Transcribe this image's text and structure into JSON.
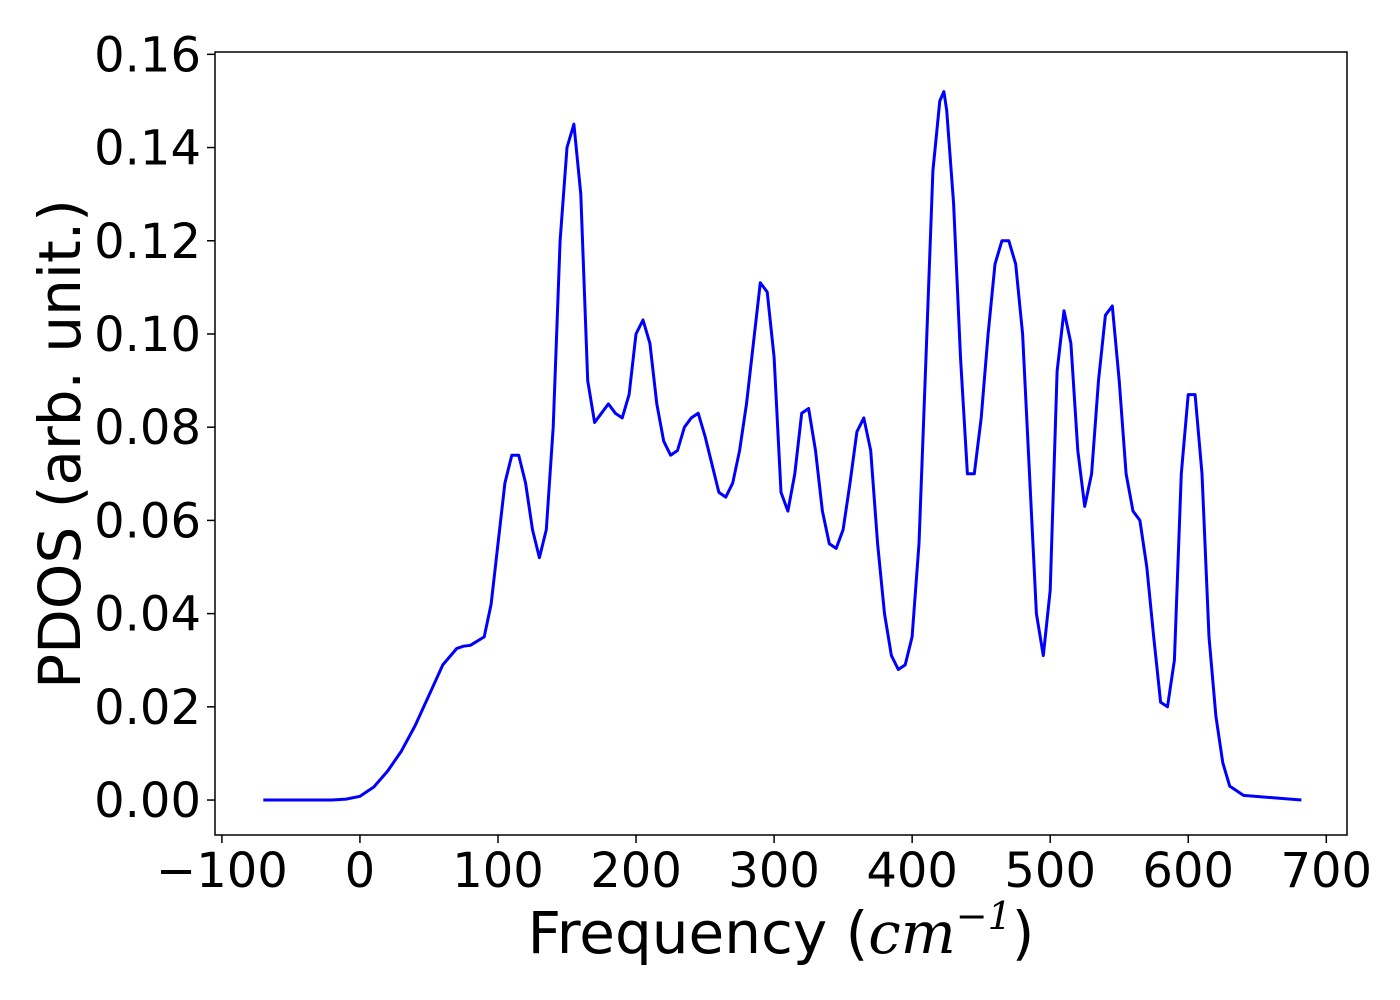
{
  "chart_data": {
    "type": "line",
    "title": "",
    "xlabel_prefix": "Frequency (",
    "xlabel_unit": "cm",
    "xlabel_exp": "−1",
    "xlabel_suffix": ")",
    "ylabel": "PDOS (arb. unit.)",
    "xlim": [
      -105,
      715
    ],
    "ylim": [
      -0.0075,
      0.1605
    ],
    "xticks": [
      -100,
      0,
      100,
      200,
      300,
      400,
      500,
      600,
      700
    ],
    "xtick_labels": [
      "−100",
      "0",
      "100",
      "200",
      "300",
      "400",
      "500",
      "600",
      "700"
    ],
    "yticks": [
      0.0,
      0.02,
      0.04,
      0.06,
      0.08,
      0.1,
      0.12,
      0.14,
      0.16
    ],
    "ytick_labels": [
      "0.00",
      "0.02",
      "0.04",
      "0.06",
      "0.08",
      "0.10",
      "0.12",
      "0.14",
      "0.16"
    ],
    "grid": false,
    "line_color": "#0000ff",
    "series": [
      {
        "x": [
          -70,
          -20,
          -10,
          0,
          10,
          20,
          30,
          40,
          50,
          60,
          70,
          75,
          80,
          90,
          95,
          100,
          105,
          110,
          115,
          120,
          125,
          130,
          135,
          140,
          145,
          150,
          155,
          160,
          165,
          170,
          175,
          180,
          185,
          190,
          195,
          200,
          205,
          210,
          215,
          220,
          225,
          230,
          235,
          240,
          245,
          250,
          255,
          260,
          265,
          270,
          275,
          280,
          285,
          290,
          295,
          300,
          305,
          310,
          315,
          320,
          325,
          330,
          335,
          340,
          345,
          350,
          355,
          360,
          365,
          370,
          375,
          380,
          385,
          390,
          395,
          400,
          405,
          410,
          415,
          420,
          423,
          425,
          430,
          435,
          440,
          445,
          450,
          455,
          460,
          465,
          470,
          475,
          480,
          485,
          490,
          495,
          500,
          505,
          510,
          515,
          520,
          525,
          530,
          535,
          540,
          545,
          550,
          555,
          560,
          565,
          570,
          575,
          580,
          585,
          590,
          595,
          600,
          605,
          610,
          615,
          620,
          625,
          630,
          640,
          682
        ],
        "y": [
          0.0,
          0.0,
          0.0002,
          0.0008,
          0.0028,
          0.0062,
          0.0105,
          0.016,
          0.0225,
          0.029,
          0.0325,
          0.033,
          0.0332,
          0.035,
          0.042,
          0.055,
          0.068,
          0.074,
          0.074,
          0.068,
          0.058,
          0.052,
          0.058,
          0.08,
          0.12,
          0.14,
          0.145,
          0.13,
          0.09,
          0.081,
          0.083,
          0.085,
          0.083,
          0.082,
          0.087,
          0.1,
          0.103,
          0.098,
          0.085,
          0.077,
          0.074,
          0.075,
          0.08,
          0.082,
          0.083,
          0.078,
          0.072,
          0.066,
          0.065,
          0.068,
          0.075,
          0.085,
          0.098,
          0.111,
          0.109,
          0.095,
          0.066,
          0.062,
          0.07,
          0.083,
          0.084,
          0.075,
          0.062,
          0.055,
          0.054,
          0.058,
          0.068,
          0.079,
          0.082,
          0.075,
          0.055,
          0.04,
          0.031,
          0.028,
          0.029,
          0.035,
          0.055,
          0.095,
          0.135,
          0.15,
          0.152,
          0.148,
          0.128,
          0.095,
          0.07,
          0.07,
          0.082,
          0.1,
          0.115,
          0.12,
          0.12,
          0.115,
          0.1,
          0.07,
          0.04,
          0.031,
          0.045,
          0.092,
          0.105,
          0.098,
          0.075,
          0.063,
          0.07,
          0.09,
          0.104,
          0.106,
          0.09,
          0.07,
          0.062,
          0.06,
          0.05,
          0.035,
          0.021,
          0.02,
          0.03,
          0.07,
          0.087,
          0.087,
          0.07,
          0.035,
          0.018,
          0.008,
          0.003,
          0.001,
          0.0
        ]
      }
    ]
  }
}
